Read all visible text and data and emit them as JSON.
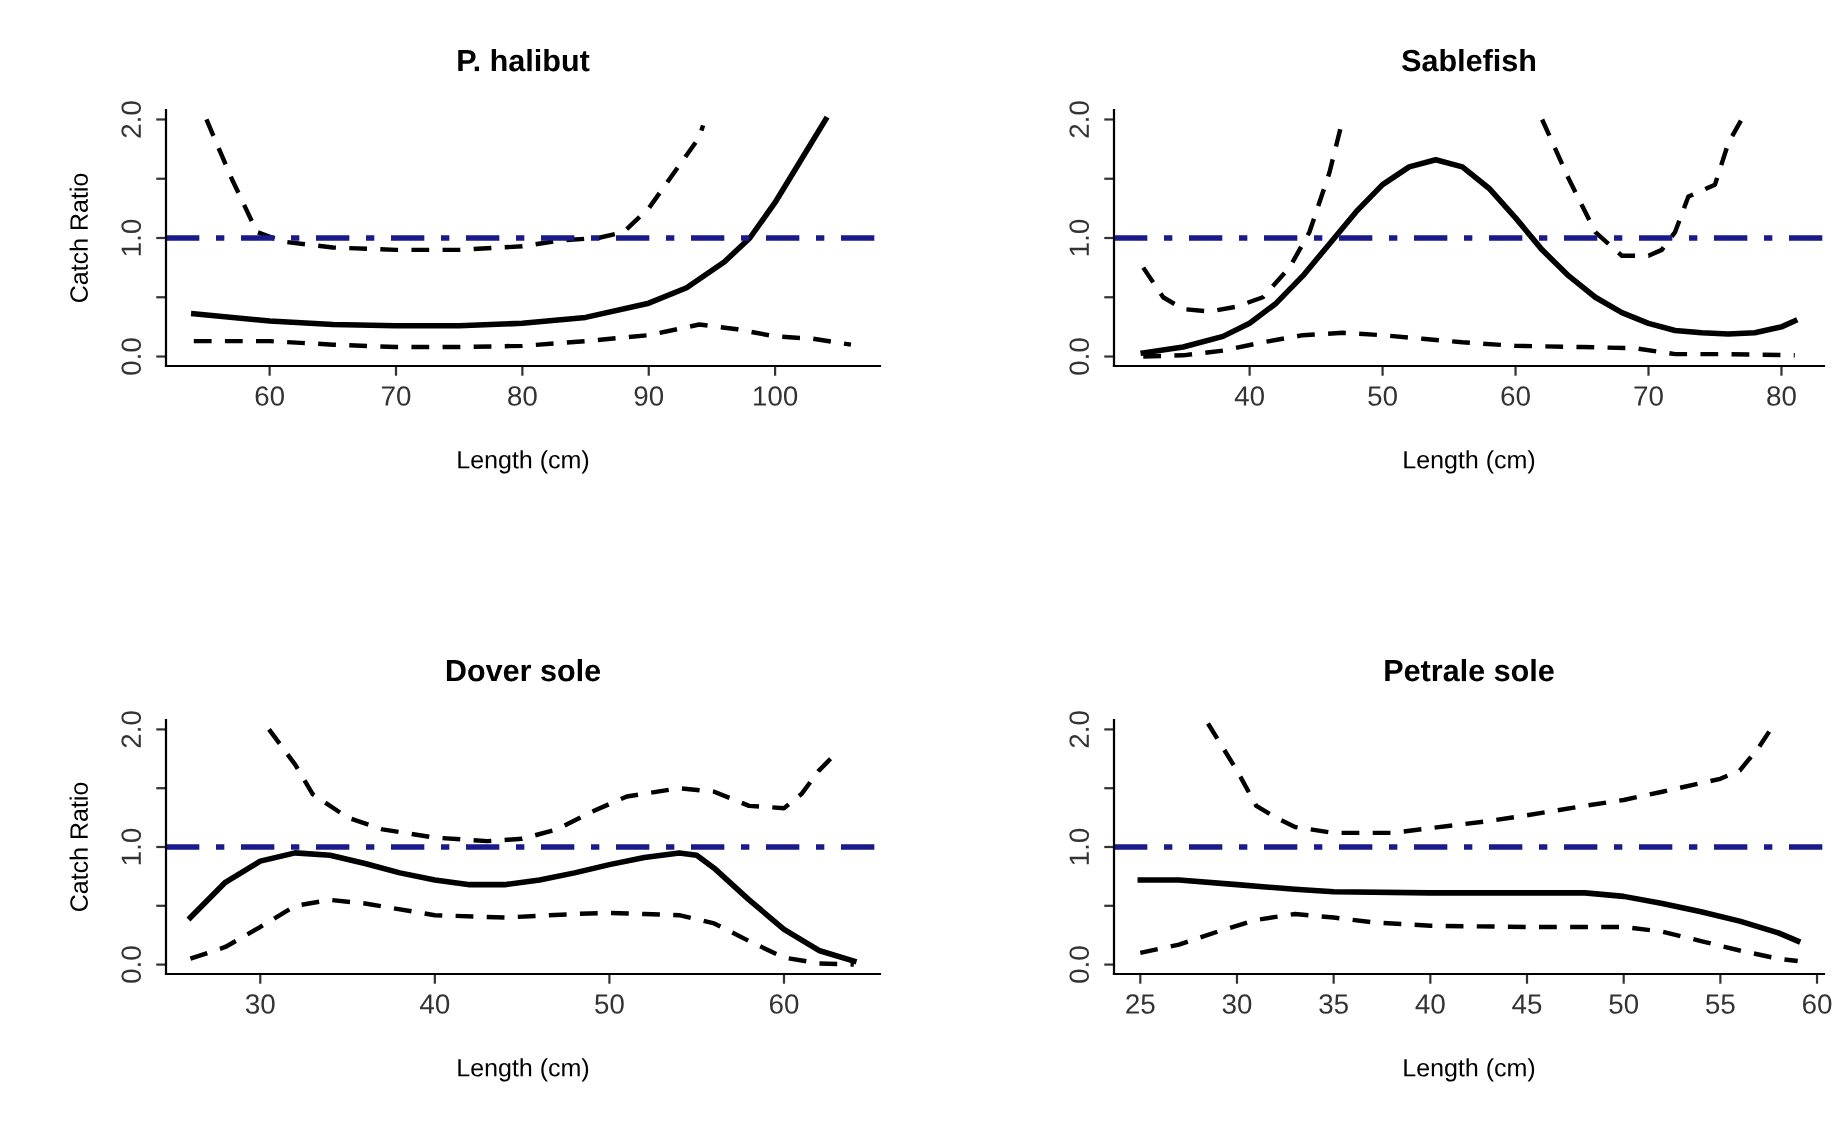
{
  "chart_data": [
    {
      "type": "line",
      "title": "P. halibut",
      "xlabel": "Length (cm)",
      "ylabel": "Catch Ratio",
      "xlim": [
        51.8,
        108.3
      ],
      "xticks": [
        60,
        70,
        80,
        90,
        100
      ],
      "ylim": [
        -0.08,
        2.08
      ],
      "yticks": [
        {
          "value": 0,
          "label": "0.0"
        },
        {
          "value": 0.5,
          "label": null
        },
        {
          "value": 1,
          "label": "1.0"
        },
        {
          "value": 1.5,
          "label": null
        },
        {
          "value": 2,
          "label": "2.0"
        }
      ],
      "grid": false,
      "legend": false,
      "marker": "none",
      "ref_lines": [
        {
          "axis": "y",
          "value": 1,
          "color": "#1a1a8c",
          "line_style": "dashdot"
        }
      ],
      "series": [
        {
          "color": "#000000",
          "line_style": "solid",
          "x": [
            54,
            60,
            65,
            70,
            75,
            80,
            85,
            90,
            93,
            96,
            98,
            100,
            102,
            104
          ],
          "values": [
            0.36,
            0.3,
            0.27,
            0.26,
            0.26,
            0.28,
            0.33,
            0.45,
            0.58,
            0.8,
            1.0,
            1.3,
            1.65,
            2.0
          ]
        },
        {
          "color": "#000000",
          "line_style": "dashed",
          "x": [
            55,
            57,
            59,
            61,
            65,
            70,
            75,
            80,
            83,
            86,
            88,
            90,
            92,
            94,
            94.3
          ],
          "values": [
            2.0,
            1.5,
            1.05,
            0.97,
            0.92,
            0.9,
            0.9,
            0.93,
            0.98,
            1.0,
            1.05,
            1.25,
            1.55,
            1.85,
            1.95
          ]
        },
        {
          "color": "#000000",
          "line_style": "dashed",
          "x": [
            54,
            60,
            65,
            70,
            75,
            80,
            85,
            90,
            94,
            97,
            100,
            103,
            106
          ],
          "values": [
            0.13,
            0.13,
            0.1,
            0.08,
            0.08,
            0.09,
            0.13,
            0.18,
            0.27,
            0.23,
            0.17,
            0.15,
            0.1
          ]
        }
      ]
    },
    {
      "type": "line",
      "title": "Sablefish",
      "xlabel": "Length (cm)",
      "xlim": [
        29.8,
        83.2
      ],
      "xticks": [
        40,
        50,
        60,
        70,
        80
      ],
      "ylim": [
        -0.08,
        2.08
      ],
      "yticks": [
        {
          "value": 0,
          "label": "0.0"
        },
        {
          "value": 0.5,
          "label": null
        },
        {
          "value": 1,
          "label": "1.0"
        },
        {
          "value": 1.5,
          "label": null
        },
        {
          "value": 2,
          "label": "2.0"
        }
      ],
      "grid": false,
      "legend": false,
      "marker": "none",
      "ref_lines": [
        {
          "axis": "y",
          "value": 1,
          "color": "#1a1a8c",
          "line_style": "dashdot"
        }
      ],
      "series": [
        {
          "color": "#000000",
          "line_style": "solid",
          "x": [
            32,
            35,
            38,
            40,
            42,
            44,
            46,
            48,
            50,
            52,
            54,
            56,
            58,
            60,
            62,
            64,
            66,
            68,
            70,
            72,
            74,
            76,
            78,
            80,
            81
          ],
          "values": [
            0.03,
            0.08,
            0.17,
            0.28,
            0.45,
            0.68,
            0.95,
            1.22,
            1.45,
            1.6,
            1.66,
            1.6,
            1.42,
            1.17,
            0.9,
            0.68,
            0.5,
            0.37,
            0.28,
            0.22,
            0.2,
            0.19,
            0.2,
            0.25,
            0.3
          ]
        },
        {
          "color": "#000000",
          "line_style": "dashed",
          "x": [
            32,
            33.5,
            35,
            37,
            39,
            41,
            43,
            44.5,
            46,
            47,
            55,
            62,
            64,
            66,
            68,
            70,
            71,
            72,
            73,
            75,
            76,
            77
          ],
          "values": [
            0.75,
            0.5,
            0.4,
            0.38,
            0.42,
            0.5,
            0.75,
            1.05,
            1.55,
            2.0,
            null,
            2.0,
            1.5,
            1.05,
            0.85,
            0.85,
            0.9,
            1.05,
            1.35,
            1.45,
            1.8,
            2.0
          ]
        },
        {
          "color": "#000000",
          "line_style": "dashed",
          "x": [
            32,
            35,
            38,
            41,
            44,
            47,
            50,
            53,
            56,
            60,
            65,
            69,
            72,
            76,
            81
          ],
          "values": [
            0.0,
            0.01,
            0.05,
            0.12,
            0.18,
            0.2,
            0.18,
            0.15,
            0.12,
            0.09,
            0.08,
            0.07,
            0.02,
            0.02,
            0.01
          ]
        }
      ]
    },
    {
      "type": "line",
      "title": "Dover sole",
      "xlabel": "Length (cm)",
      "ylabel": "Catch Ratio",
      "xlim": [
        24.6,
        65.5
      ],
      "xticks": [
        30,
        40,
        50,
        60
      ],
      "ylim": [
        -0.08,
        2.08
      ],
      "yticks": [
        {
          "value": 0,
          "label": "0.0"
        },
        {
          "value": 0.5,
          "label": null
        },
        {
          "value": 1,
          "label": "1.0"
        },
        {
          "value": 1.5,
          "label": null
        },
        {
          "value": 2,
          "label": "2.0"
        }
      ],
      "grid": false,
      "legend": false,
      "marker": "none",
      "ref_lines": [
        {
          "axis": "y",
          "value": 1,
          "color": "#1a1a8c",
          "line_style": "dashdot"
        }
      ],
      "series": [
        {
          "color": "#000000",
          "line_style": "solid",
          "x": [
            26,
            28,
            30,
            32,
            34,
            36,
            38,
            40,
            42,
            44,
            46,
            48,
            50,
            52,
            54,
            55,
            56,
            58,
            60,
            62,
            64
          ],
          "values": [
            0.4,
            0.7,
            0.88,
            0.95,
            0.93,
            0.86,
            0.78,
            0.72,
            0.68,
            0.68,
            0.72,
            0.78,
            0.85,
            0.91,
            0.95,
            0.93,
            0.82,
            0.55,
            0.3,
            0.12,
            0.03
          ]
        },
        {
          "color": "#000000",
          "line_style": "dashed",
          "x": [
            30.5,
            32,
            33,
            35,
            37,
            40,
            43,
            45,
            47,
            49,
            51,
            54,
            56,
            58,
            60,
            61,
            62,
            63
          ],
          "values": [
            2.0,
            1.7,
            1.45,
            1.25,
            1.15,
            1.08,
            1.05,
            1.07,
            1.15,
            1.3,
            1.43,
            1.5,
            1.47,
            1.35,
            1.33,
            1.45,
            1.65,
            1.8
          ]
        },
        {
          "color": "#000000",
          "line_style": "dashed",
          "x": [
            26,
            28,
            30,
            32,
            34,
            36,
            40,
            44,
            48,
            50,
            52,
            54,
            56,
            58,
            60,
            62,
            64
          ],
          "values": [
            0.05,
            0.15,
            0.32,
            0.5,
            0.55,
            0.52,
            0.42,
            0.4,
            0.43,
            0.44,
            0.43,
            0.42,
            0.35,
            0.2,
            0.06,
            0.01,
            0.0
          ]
        }
      ]
    },
    {
      "type": "line",
      "title": "Petrale sole",
      "xlabel": "Length (cm)",
      "xlim": [
        23.64,
        60.36
      ],
      "xticks": [
        25,
        30,
        35,
        40,
        45,
        50,
        55,
        60
      ],
      "ylim": [
        -0.08,
        2.08
      ],
      "yticks": [
        {
          "value": 0,
          "label": "0.0"
        },
        {
          "value": 0.5,
          "label": null
        },
        {
          "value": 1,
          "label": "1.0"
        },
        {
          "value": 1.5,
          "label": null
        },
        {
          "value": 2,
          "label": "2.0"
        }
      ],
      "grid": false,
      "legend": false,
      "marker": "none",
      "ref_lines": [
        {
          "axis": "y",
          "value": 1,
          "color": "#1a1a8c",
          "line_style": "dashdot"
        }
      ],
      "series": [
        {
          "color": "#000000",
          "line_style": "solid",
          "x": [
            25,
            27,
            30,
            33,
            35,
            40,
            45,
            48,
            50,
            52,
            54,
            56,
            58,
            59
          ],
          "values": [
            0.72,
            0.72,
            0.68,
            0.64,
            0.62,
            0.61,
            0.61,
            0.61,
            0.58,
            0.52,
            0.45,
            0.37,
            0.27,
            0.2
          ]
        },
        {
          "color": "#000000",
          "line_style": "dashed",
          "x": [
            28.5,
            30,
            31,
            32,
            33,
            35,
            38,
            40,
            43,
            45,
            48,
            50,
            52,
            55,
            56,
            57,
            57.6
          ],
          "values": [
            2.05,
            1.65,
            1.35,
            1.25,
            1.17,
            1.12,
            1.12,
            1.16,
            1.22,
            1.27,
            1.35,
            1.4,
            1.47,
            1.58,
            1.65,
            1.85,
            2.0
          ]
        },
        {
          "color": "#000000",
          "line_style": "dashed",
          "x": [
            25,
            27,
            29,
            31,
            33,
            35,
            37,
            40,
            45,
            50,
            52,
            54,
            56,
            58,
            59
          ],
          "values": [
            0.1,
            0.17,
            0.28,
            0.38,
            0.43,
            0.4,
            0.36,
            0.33,
            0.32,
            0.32,
            0.28,
            0.2,
            0.12,
            0.05,
            0.03
          ]
        }
      ]
    }
  ]
}
